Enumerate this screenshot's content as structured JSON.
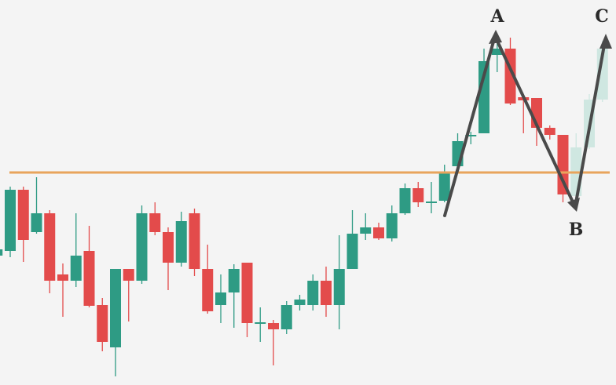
{
  "chart_data": {
    "type": "candlestick",
    "categories": [
      null,
      null,
      null,
      null,
      null,
      null,
      null,
      null,
      null,
      null,
      null,
      null,
      null,
      null,
      null,
      null,
      null,
      null,
      null,
      null,
      null,
      null,
      null,
      null,
      null,
      null,
      null,
      null,
      null,
      null,
      null,
      null,
      null,
      null,
      null,
      null,
      null,
      null,
      null,
      null,
      null,
      null,
      null,
      null,
      null,
      null,
      null
    ],
    "open": [
      165,
      171,
      249,
      195,
      219,
      141,
      133,
      171,
      102,
      48,
      148,
      133,
      219,
      195,
      156,
      219,
      148,
      102,
      118,
      156,
      78,
      79,
      71,
      102,
      102,
      133,
      102,
      148,
      193,
      201,
      187,
      219,
      251,
      232,
      235,
      279,
      317,
      321,
      421,
      429,
      367,
      366,
      328,
      319,
      241,
      303,
      364
    ],
    "close": [
      173,
      249,
      185,
      219,
      133,
      133,
      165,
      101,
      55,
      148,
      133,
      219,
      195,
      156,
      209,
      148,
      94,
      118,
      148,
      79,
      80,
      71,
      102,
      109,
      133,
      102,
      148,
      193,
      201,
      187,
      219,
      251,
      233,
      234,
      271,
      311,
      319,
      413,
      429,
      359,
      363,
      328,
      319,
      243,
      303,
      364,
      429
    ],
    "high": [
      175,
      253,
      253,
      265,
      223,
      155,
      219,
      203,
      111,
      148,
      148,
      229,
      233,
      201,
      221,
      225,
      179,
      141,
      154,
      156,
      99,
      83,
      107,
      115,
      141,
      151,
      191,
      223,
      219,
      207,
      229,
      257,
      259,
      259,
      281,
      321,
      323,
      429,
      441,
      443,
      371,
      366,
      331,
      319,
      321,
      371,
      439
    ],
    "low": [
      163,
      163,
      157,
      193,
      117,
      87,
      125,
      99,
      43,
      11,
      81,
      129,
      191,
      121,
      151,
      139,
      91,
      79,
      73,
      61,
      55,
      25,
      65,
      95,
      95,
      87,
      71,
      148,
      185,
      185,
      183,
      217,
      227,
      219,
      233,
      277,
      307,
      321,
      399,
      357,
      321,
      305,
      313,
      233,
      233,
      301,
      361
    ],
    "colors": [
      "#2e9b84",
      "#2e9b84",
      "#e34b4b",
      "#2e9b84",
      "#e34b4b",
      "#e34b4b",
      "#2e9b84",
      "#e34b4b",
      "#e34b4b",
      "#2e9b84",
      "#e34b4b",
      "#2e9b84",
      "#e34b4b",
      "#e34b4b",
      "#2e9b84",
      "#e34b4b",
      "#e34b4b",
      "#2e9b84",
      "#2e9b84",
      "#e34b4b",
      "#2e9b84",
      "#e34b4b",
      "#2e9b84",
      "#2e9b84",
      "#2e9b84",
      "#e34b4b",
      "#2e9b84",
      "#2e9b84",
      "#2e9b84",
      "#e34b4b",
      "#2e9b84",
      "#2e9b84",
      "#e34b4b",
      "#2e9b84",
      "#2e9b84",
      "#2e9b84",
      "#2e9b84",
      "#2e9b84",
      "#2e9b84",
      "#e34b4b",
      "#e34b4b",
      "#e34b4b",
      "#e34b4b",
      "#e34b4b",
      "#cfe7e1",
      "#cfe7e1",
      "#cfe7e1"
    ],
    "ylim": [
      0,
      491
    ],
    "level": 271,
    "level_color": "#e8a45c",
    "annotations": [
      "A",
      "B",
      "C"
    ]
  }
}
